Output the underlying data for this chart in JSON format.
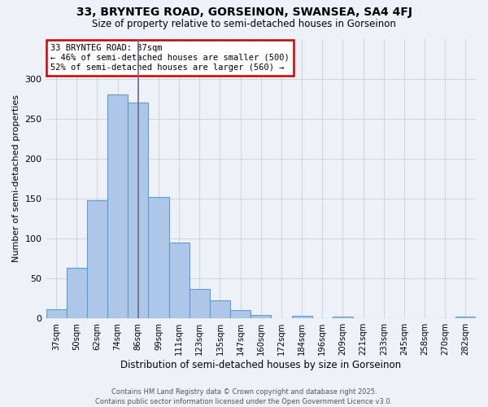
{
  "title1": "33, BRYNTEG ROAD, GORSEINON, SWANSEA, SA4 4FJ",
  "title2": "Size of property relative to semi-detached houses in Gorseinon",
  "xlabel": "Distribution of semi-detached houses by size in Gorseinon",
  "ylabel": "Number of semi-detached properties",
  "bins": [
    "37sqm",
    "50sqm",
    "62sqm",
    "74sqm",
    "86sqm",
    "99sqm",
    "111sqm",
    "123sqm",
    "135sqm",
    "147sqm",
    "160sqm",
    "172sqm",
    "184sqm",
    "196sqm",
    "209sqm",
    "221sqm",
    "233sqm",
    "245sqm",
    "258sqm",
    "270sqm",
    "282sqm"
  ],
  "values": [
    11,
    63,
    148,
    280,
    270,
    152,
    95,
    37,
    23,
    10,
    4,
    0,
    3,
    0,
    2,
    0,
    0,
    0,
    0,
    0,
    2
  ],
  "property_bin_index": 4,
  "annotation_title": "33 BRYNTEG ROAD: 87sqm",
  "annotation_line1": "← 46% of semi-detached houses are smaller (500)",
  "annotation_line2": "52% of semi-detached houses are larger (560) →",
  "bar_color": "#aec6e8",
  "bar_edge_color": "#5a9fd4",
  "line_color": "#6b6b8a",
  "annotation_box_color": "#ffffff",
  "annotation_box_edge": "#cc0000",
  "background_color": "#eef2f8",
  "ylim": [
    0,
    350
  ],
  "yticks": [
    0,
    50,
    100,
    150,
    200,
    250,
    300
  ],
  "footer": "Contains HM Land Registry data © Crown copyright and database right 2025.\nContains public sector information licensed under the Open Government Licence v3.0.",
  "grid_color": "#c8d0de"
}
